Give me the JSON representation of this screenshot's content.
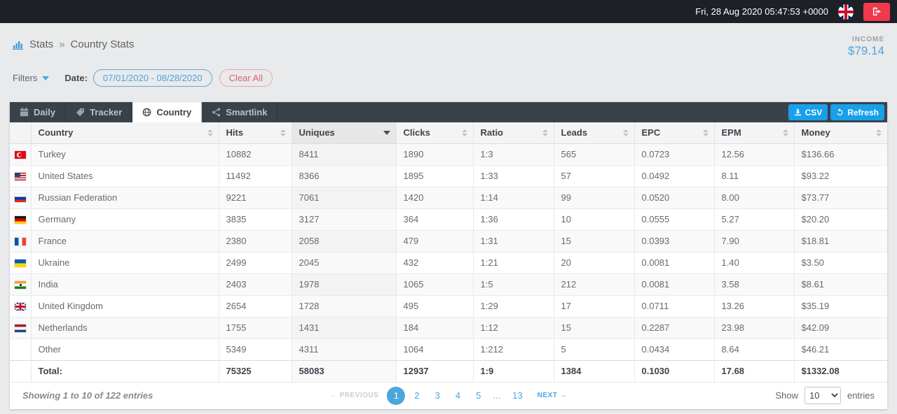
{
  "topbar": {
    "datetime": "Fri, 28 Aug 2020 05:47:53 +0000"
  },
  "header": {
    "breadcrumb": {
      "section": "Stats",
      "separator": "»",
      "page": "Country Stats"
    },
    "income": {
      "label": "INCOME",
      "value": "$79.14"
    }
  },
  "filters": {
    "label": "Filters",
    "date_label": "Date:",
    "date_range": "07/01/2020 - 08/28/2020",
    "clear_all": "Clear All"
  },
  "tabs": [
    {
      "label": "Daily",
      "icon": "calendar-icon",
      "active": false
    },
    {
      "label": "Tracker",
      "icon": "tag-icon",
      "active": false
    },
    {
      "label": "Country",
      "icon": "globe-icon",
      "active": true
    },
    {
      "label": "Smartlink",
      "icon": "share-icon",
      "active": false
    }
  ],
  "actions": {
    "csv": "CSV",
    "refresh": "Refresh"
  },
  "colors": {
    "accent_blue": "#18a0ea",
    "link_blue": "#4ba6db",
    "alert_red": "#f1394c"
  },
  "table": {
    "columns": [
      {
        "label": "Country",
        "key": "country"
      },
      {
        "label": "Hits",
        "key": "hits"
      },
      {
        "label": "Uniques",
        "key": "uniques"
      },
      {
        "label": "Clicks",
        "key": "clicks"
      },
      {
        "label": "Ratio",
        "key": "ratio"
      },
      {
        "label": "Leads",
        "key": "leads"
      },
      {
        "label": "EPC",
        "key": "epc"
      },
      {
        "label": "EPM",
        "key": "epm"
      },
      {
        "label": "Money",
        "key": "money"
      }
    ],
    "sorted_key": "uniques",
    "sort_direction": "desc",
    "rows": [
      {
        "flag": "tr",
        "country": "Turkey",
        "hits": "10882",
        "uniques": "8411",
        "clicks": "1890",
        "ratio": "1:3",
        "leads": "565",
        "epc": "0.0723",
        "epm": "12.56",
        "money": "$136.66"
      },
      {
        "flag": "us",
        "country": "United States",
        "hits": "11492",
        "uniques": "8366",
        "clicks": "1895",
        "ratio": "1:33",
        "leads": "57",
        "epc": "0.0492",
        "epm": "8.11",
        "money": "$93.22"
      },
      {
        "flag": "ru",
        "country": "Russian Federation",
        "hits": "9221",
        "uniques": "7061",
        "clicks": "1420",
        "ratio": "1:14",
        "leads": "99",
        "epc": "0.0520",
        "epm": "8.00",
        "money": "$73.77"
      },
      {
        "flag": "de",
        "country": "Germany",
        "hits": "3835",
        "uniques": "3127",
        "clicks": "364",
        "ratio": "1:36",
        "leads": "10",
        "epc": "0.0555",
        "epm": "5.27",
        "money": "$20.20"
      },
      {
        "flag": "fr",
        "country": "France",
        "hits": "2380",
        "uniques": "2058",
        "clicks": "479",
        "ratio": "1:31",
        "leads": "15",
        "epc": "0.0393",
        "epm": "7.90",
        "money": "$18.81"
      },
      {
        "flag": "ua",
        "country": "Ukraine",
        "hits": "2499",
        "uniques": "2045",
        "clicks": "432",
        "ratio": "1:21",
        "leads": "20",
        "epc": "0.0081",
        "epm": "1.40",
        "money": "$3.50"
      },
      {
        "flag": "in",
        "country": "India",
        "hits": "2403",
        "uniques": "1978",
        "clicks": "1065",
        "ratio": "1:5",
        "leads": "212",
        "epc": "0.0081",
        "epm": "3.58",
        "money": "$8.61"
      },
      {
        "flag": "gb",
        "country": "United Kingdom",
        "hits": "2654",
        "uniques": "1728",
        "clicks": "495",
        "ratio": "1:29",
        "leads": "17",
        "epc": "0.0711",
        "epm": "13.26",
        "money": "$35.19"
      },
      {
        "flag": "nl",
        "country": "Netherlands",
        "hits": "1755",
        "uniques": "1431",
        "clicks": "184",
        "ratio": "1:12",
        "leads": "15",
        "epc": "0.2287",
        "epm": "23.98",
        "money": "$42.09"
      },
      {
        "flag": "",
        "country": "Other",
        "hits": "5349",
        "uniques": "4311",
        "clicks": "1064",
        "ratio": "1:212",
        "leads": "5",
        "epc": "0.0434",
        "epm": "8.64",
        "money": "$46.21"
      }
    ],
    "total": {
      "label": "Total:",
      "hits": "75325",
      "uniques": "58083",
      "clicks": "12937",
      "ratio": "1:9",
      "leads": "1384",
      "epc": "0.1030",
      "epm": "17.68",
      "money": "$1332.08"
    }
  },
  "footer": {
    "showing": "Showing 1 to 10 of 122 entries",
    "previous_label": "← PREVIOUS",
    "next_label": "NEXT →",
    "pages": [
      "1",
      "2",
      "3",
      "4",
      "5",
      "...",
      "13"
    ],
    "active_page": "1",
    "show_label": "Show",
    "page_size": "10",
    "entries_label": "entries"
  }
}
